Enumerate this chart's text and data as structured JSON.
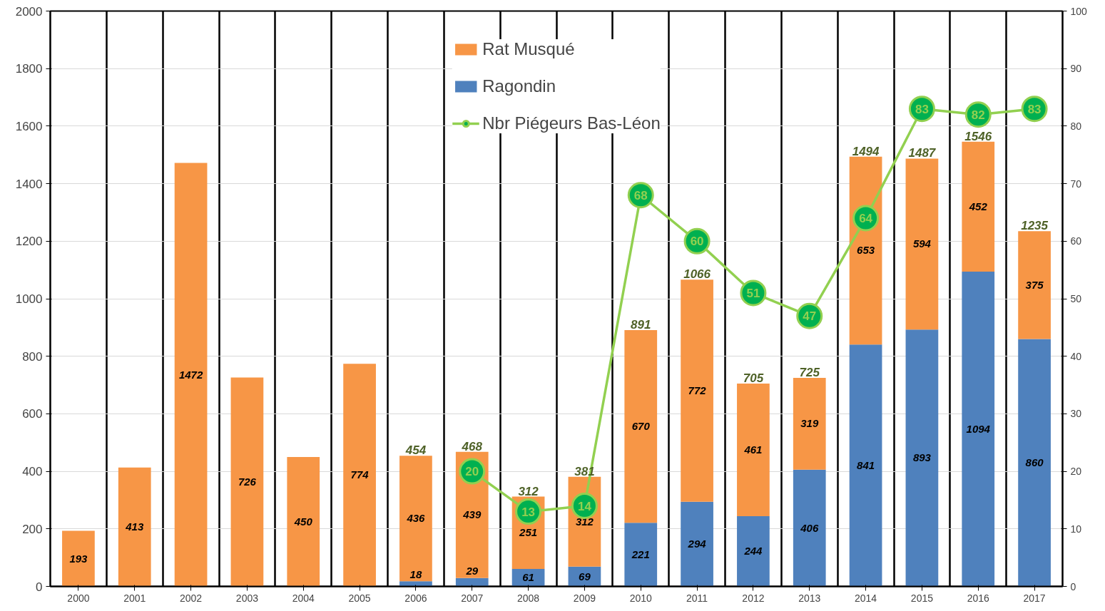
{
  "chart_data": {
    "type": "bar",
    "stacked": true,
    "categories": [
      "2000",
      "2001",
      "2002",
      "2003",
      "2004",
      "2005",
      "2006",
      "2007",
      "2008",
      "2009",
      "2010",
      "2011",
      "2012",
      "2013",
      "2014",
      "2015",
      "2016",
      "2017"
    ],
    "series": [
      {
        "name": "Ragondin",
        "color": "#4f81bd",
        "values": [
          null,
          null,
          null,
          null,
          null,
          null,
          18,
          29,
          61,
          69,
          221,
          294,
          244,
          406,
          841,
          893,
          1094,
          860
        ]
      },
      {
        "name": "Rat Musqué",
        "color": "#f79646",
        "values": [
          193,
          413,
          1472,
          726,
          450,
          774,
          436,
          439,
          251,
          312,
          670,
          772,
          461,
          319,
          653,
          594,
          452,
          375
        ]
      },
      {
        "name": "Nbr Piégeurs Bas-Léon",
        "type": "line",
        "axis": "y2",
        "color": "#92d050",
        "values": [
          null,
          null,
          null,
          null,
          null,
          null,
          null,
          20,
          13,
          14,
          68,
          60,
          51,
          47,
          64,
          83,
          82,
          83
        ]
      }
    ],
    "totals": [
      null,
      null,
      null,
      null,
      null,
      null,
      "454",
      "468",
      "312",
      "381",
      "891",
      "1066",
      "705",
      "725",
      "1494",
      "1487",
      "1546",
      "1235"
    ],
    "ylim": [
      0,
      2000
    ],
    "yticks": [
      0,
      200,
      400,
      600,
      800,
      1000,
      1200,
      1400,
      1600,
      1800,
      2000
    ],
    "y2lim": [
      0,
      100
    ],
    "y2ticks": [
      0,
      10,
      20,
      30,
      40,
      50,
      60,
      70,
      80,
      90,
      100
    ],
    "grid": true,
    "legend": "top",
    "marker": "circle",
    "line_style": "solid",
    "data_labels": true
  }
}
